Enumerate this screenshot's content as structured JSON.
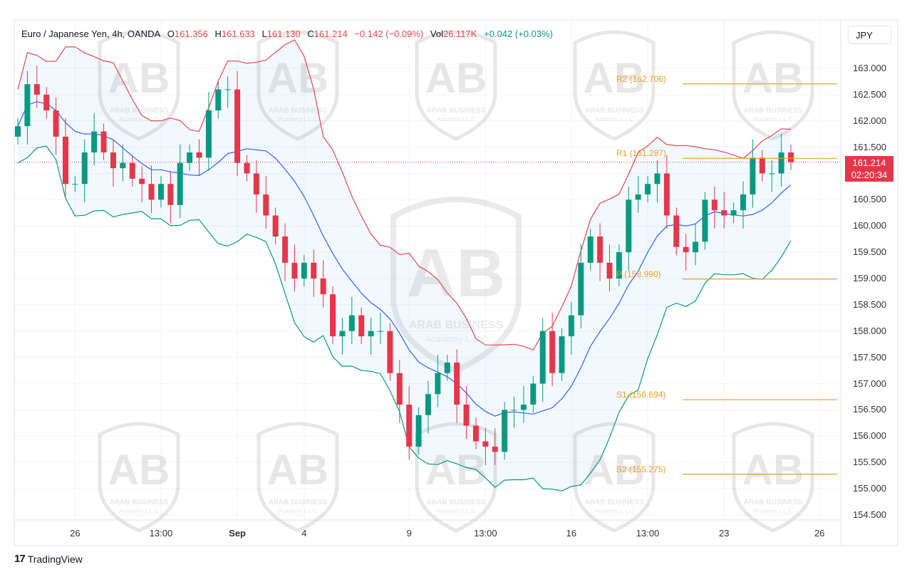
{
  "legend": {
    "symbol": "Euro / Japanese Yen, 4h, OANDA",
    "open_label": "O",
    "open": "161.356",
    "high_label": "H",
    "high": "161.633",
    "low_label": "L",
    "low": "161.130",
    "close_label": "C",
    "close": "161.214",
    "change": "−0.142 (−0.09%)",
    "vol_label": "Vol",
    "vol": "26.117K",
    "vol_change": "+0.042 (+0.03%)"
  },
  "currency_button": "JPY",
  "price_tag": {
    "price": "161.214",
    "countdown": "02:20:34"
  },
  "watermark": {
    "logo": "AB",
    "name": "ARAB BUSINESS",
    "sub": "Academy L.L.C"
  },
  "brand": {
    "logo": "17",
    "name": "TradingView"
  },
  "colors": {
    "up": "#089981",
    "down": "#e5364a",
    "upper": "#e5484d",
    "basis": "#2962ff",
    "lower": "#089981",
    "pivot": "#e8a020"
  },
  "chart_data": {
    "type": "candlestick",
    "title": "Euro / Japanese Yen, 4h, OANDA",
    "ylim": [
      154.3,
      163.4
    ],
    "y_ticks": [
      "163.000",
      "162.500",
      "162.000",
      "161.500",
      "161.000",
      "160.500",
      "160.000",
      "159.500",
      "159.000",
      "158.500",
      "158.000",
      "157.500",
      "157.000",
      "156.500",
      "156.000",
      "155.500",
      "155.000",
      "154.500"
    ],
    "x_ticks": [
      {
        "label": "26",
        "i": 6
      },
      {
        "label": "13:00",
        "i": 15
      },
      {
        "label": "Sep",
        "i": 23,
        "bold": true
      },
      {
        "label": "4",
        "i": 30
      },
      {
        "label": "9",
        "i": 41
      },
      {
        "label": "13:00",
        "i": 49
      },
      {
        "label": "16",
        "i": 58
      },
      {
        "label": "13:00",
        "i": 66
      },
      {
        "label": "23",
        "i": 74
      },
      {
        "label": "26",
        "i": 84
      }
    ],
    "first_open": 161.7,
    "closes": [
      161.9,
      162.7,
      162.5,
      162.2,
      161.7,
      160.8,
      160.8,
      161.4,
      161.8,
      161.4,
      161.1,
      161.2,
      160.9,
      160.8,
      160.5,
      160.8,
      160.4,
      161.2,
      161.4,
      161.3,
      162.2,
      162.6,
      162.6,
      161.2,
      161.0,
      160.6,
      160.2,
      159.8,
      159.3,
      159.0,
      159.3,
      159.0,
      158.7,
      157.9,
      158.0,
      158.3,
      157.9,
      158.0,
      158.0,
      157.2,
      156.6,
      155.8,
      156.4,
      156.8,
      157.2,
      157.4,
      156.6,
      156.2,
      155.9,
      155.8,
      155.7,
      156.5,
      156.5,
      156.6,
      157.0,
      158.0,
      157.2,
      157.9,
      158.3,
      159.3,
      159.8,
      159.3,
      159.0,
      159.5,
      160.5,
      160.6,
      160.8,
      161.0,
      160.2,
      159.6,
      159.5,
      159.7,
      160.5,
      160.3,
      160.2,
      160.3,
      160.6,
      161.3,
      161.0,
      161.0,
      161.4,
      161.214
    ],
    "indicator": "Bollinger Bands (20, 2)",
    "pivots": [
      {
        "label": "R2 (162.706)",
        "value": 162.706
      },
      {
        "label": "R1 (161.287)",
        "value": 161.287
      },
      {
        "label": "P (158.990)",
        "value": 158.99
      },
      {
        "label": "S1 (156.694)",
        "value": 156.694
      },
      {
        "label": "S2 (155.275)",
        "value": 155.275
      }
    ],
    "last_price": 161.214
  }
}
